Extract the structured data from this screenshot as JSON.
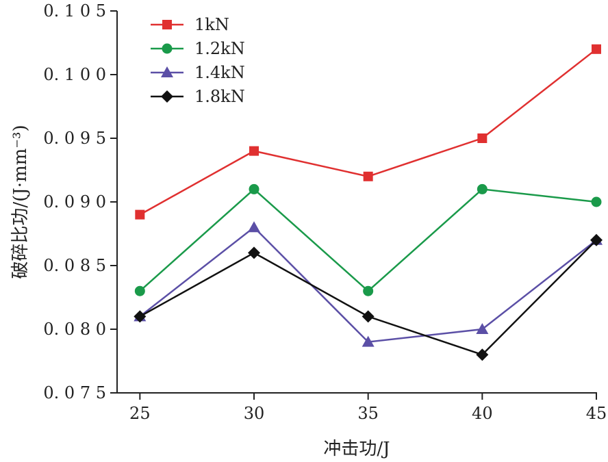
{
  "chart_data": {
    "type": "line",
    "x": [
      25,
      30,
      35,
      40,
      45
    ],
    "x_ticks": [
      "25",
      "30",
      "35",
      "40",
      "45"
    ],
    "xlim": [
      24,
      45
    ],
    "y_ticks": [
      "0.075",
      "0.080",
      "0.085",
      "0.090",
      "0.095",
      "0.100",
      "0.105"
    ],
    "ylim": [
      0.075,
      0.105
    ],
    "xlabel": "冲击功/J",
    "ylabel": "破碎比功/(J·mm⁻³)",
    "grid": false,
    "legend_position": "top-left",
    "series": [
      {
        "name": "1kN",
        "color": "#e03030",
        "marker": "square",
        "values": [
          0.089,
          0.094,
          0.092,
          0.095,
          0.102
        ]
      },
      {
        "name": "1.2kN",
        "color": "#1a9a4a",
        "marker": "circle",
        "values": [
          0.083,
          0.091,
          0.083,
          0.091,
          0.09
        ]
      },
      {
        "name": "1.4kN",
        "color": "#5b4fa6",
        "marker": "triangle",
        "values": [
          0.081,
          0.088,
          0.079,
          0.08,
          0.087
        ]
      },
      {
        "name": "1.8kN",
        "color": "#111111",
        "marker": "diamond",
        "values": [
          0.081,
          0.086,
          0.081,
          0.078,
          0.087
        ]
      }
    ]
  }
}
